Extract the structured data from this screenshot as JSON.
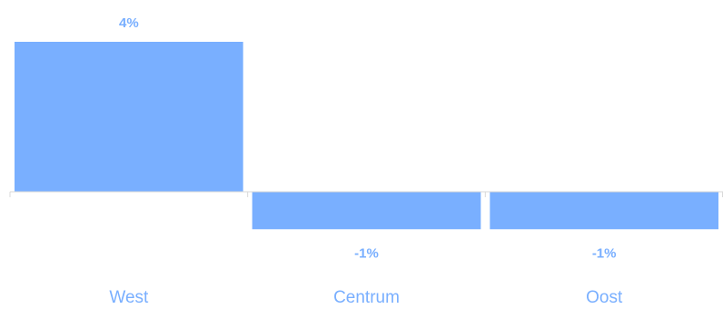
{
  "chart_data": {
    "type": "bar",
    "categories": [
      "West",
      "Centrum",
      "Oost"
    ],
    "values": [
      4,
      -1,
      -1
    ],
    "data_labels": [
      "4%",
      "-1%",
      "-1%"
    ],
    "title": "",
    "xlabel": "",
    "ylabel": "",
    "ylim": [
      -1,
      4
    ],
    "grid": false,
    "legend": "none"
  },
  "colors": {
    "bar": "#79afff",
    "label": "#79afff",
    "axis": "#d9d9d9"
  }
}
